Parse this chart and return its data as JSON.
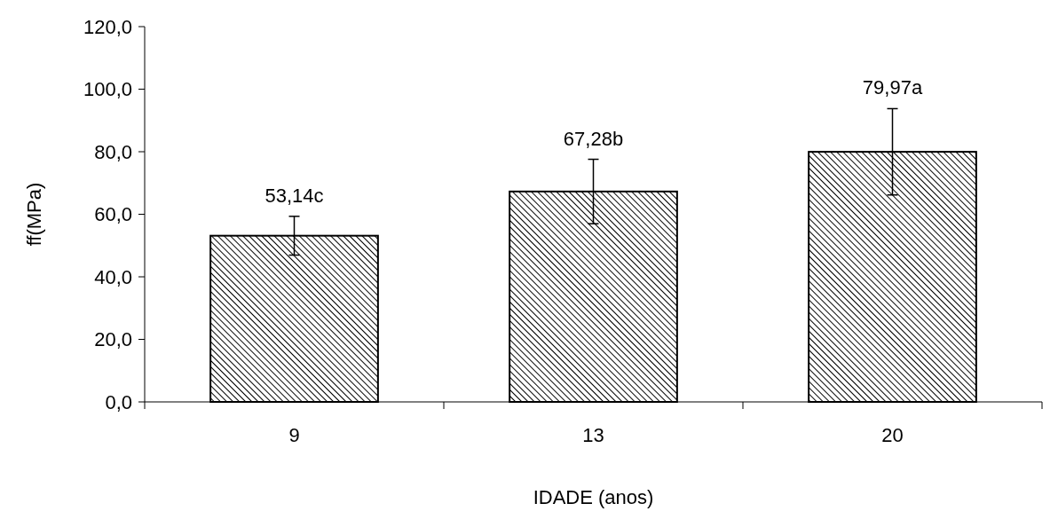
{
  "chart_data": {
    "type": "bar",
    "xlabel": "IDADE (anos)",
    "ylabel": "ff(MPa)",
    "categories": [
      "9",
      "13",
      "20"
    ],
    "values": [
      53.14,
      67.28,
      79.97
    ],
    "errors": [
      6.2,
      10.3,
      13.8
    ],
    "value_labels": [
      "53,14c",
      "67,28b",
      "79,97a"
    ],
    "color": "#000000",
    "ylim": [
      0,
      120
    ],
    "yticks": [
      {
        "value": 0,
        "label": "0,0"
      },
      {
        "value": 20,
        "label": "20,0"
      },
      {
        "value": 40,
        "label": "40,0"
      },
      {
        "value": 60,
        "label": "60,0"
      },
      {
        "value": 80,
        "label": "80,0"
      },
      {
        "value": 100,
        "label": "100,0"
      },
      {
        "value": 120,
        "label": "120,0"
      }
    ],
    "grid": false
  }
}
